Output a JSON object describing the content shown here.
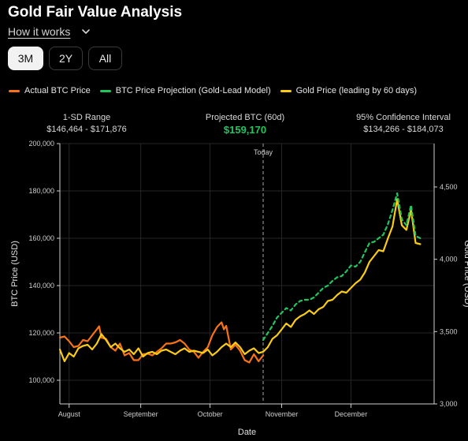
{
  "header": {
    "title": "Gold Fair Value Analysis",
    "how_it_works": "How it works"
  },
  "tabs": [
    {
      "label": "3M",
      "active": true
    },
    {
      "label": "2Y",
      "active": false
    },
    {
      "label": "All",
      "active": false
    }
  ],
  "legend": [
    {
      "label": "Actual BTC Price",
      "color": "#f97316"
    },
    {
      "label": "BTC Price Projection (Gold-Lead Model)",
      "color": "#22c55e"
    },
    {
      "label": "Gold Price (leading by 60 days)",
      "color": "#facc15"
    }
  ],
  "stats": {
    "sd_label": "1-SD Range",
    "sd_value": "$146,464 - $171,876",
    "proj_label": "Projected BTC (60d)",
    "proj_value": "$159,170",
    "ci_label": "95% Confidence Interval",
    "ci_value": "$134,266 - $184,073"
  },
  "chart_data": {
    "type": "line",
    "xlabel": "Date",
    "ylabel": "BTC Price (USD)",
    "y2label": "Gold Price (USD)",
    "ylim": [
      90000,
      200000
    ],
    "y2lim": [
      3000,
      4800
    ],
    "yticks": [
      "100,000",
      "120,000",
      "140,000",
      "160,000",
      "180,000",
      "200,000"
    ],
    "y2ticks": [
      "3,000",
      "3,500",
      "4,000",
      "4,500"
    ],
    "x_range": [
      "2025-07-28",
      "2026-01-06"
    ],
    "x_ticks": [
      {
        "date": "2025-08-01",
        "label": "August"
      },
      {
        "date": "2025-09-01",
        "label": "September"
      },
      {
        "date": "2025-10-01",
        "label": "October"
      },
      {
        "date": "2025-11-01",
        "label": "November"
      },
      {
        "date": "2025-12-01",
        "label": "December"
      }
    ],
    "today": {
      "date": "2025-10-24",
      "label": "Today"
    },
    "grid": true,
    "series": [
      {
        "name": "Actual BTC Price",
        "color": "#f97316",
        "axis": "left",
        "points": [
          [
            "2025-07-28",
            118000
          ],
          [
            "2025-07-30",
            118500
          ],
          [
            "2025-08-01",
            116500
          ],
          [
            "2025-08-03",
            114000
          ],
          [
            "2025-08-05",
            114500
          ],
          [
            "2025-08-07",
            117000
          ],
          [
            "2025-08-09",
            116500
          ],
          [
            "2025-08-11",
            119000
          ],
          [
            "2025-08-13",
            121500
          ],
          [
            "2025-08-14",
            122800
          ],
          [
            "2025-08-15",
            118000
          ],
          [
            "2025-08-17",
            117500
          ],
          [
            "2025-08-19",
            114000
          ],
          [
            "2025-08-21",
            112500
          ],
          [
            "2025-08-23",
            115500
          ],
          [
            "2025-08-25",
            110500
          ],
          [
            "2025-08-27",
            111500
          ],
          [
            "2025-08-29",
            108500
          ],
          [
            "2025-08-31",
            108500
          ],
          [
            "2025-09-02",
            111000
          ],
          [
            "2025-09-04",
            111200
          ],
          [
            "2025-09-06",
            110500
          ],
          [
            "2025-09-08",
            112000
          ],
          [
            "2025-09-10",
            113500
          ],
          [
            "2025-09-12",
            115500
          ],
          [
            "2025-09-14",
            115500
          ],
          [
            "2025-09-16",
            116000
          ],
          [
            "2025-09-18",
            117000
          ],
          [
            "2025-09-20",
            115500
          ],
          [
            "2025-09-22",
            113000
          ],
          [
            "2025-09-24",
            112000
          ],
          [
            "2025-09-26",
            109500
          ],
          [
            "2025-09-28",
            112000
          ],
          [
            "2025-09-30",
            114000
          ],
          [
            "2025-10-02",
            119000
          ],
          [
            "2025-10-04",
            122500
          ],
          [
            "2025-10-06",
            124500
          ],
          [
            "2025-10-07",
            121500
          ],
          [
            "2025-10-08",
            123000
          ],
          [
            "2025-10-10",
            113000
          ],
          [
            "2025-10-12",
            115000
          ],
          [
            "2025-10-14",
            112500
          ],
          [
            "2025-10-16",
            108500
          ],
          [
            "2025-10-18",
            107500
          ],
          [
            "2025-10-20",
            111000
          ],
          [
            "2025-10-22",
            108000
          ],
          [
            "2025-10-24",
            110500
          ]
        ]
      },
      {
        "name": "BTC Price Projection (Gold-Lead Model)",
        "color": "#22c55e",
        "axis": "left",
        "dashed": true,
        "points": [
          [
            "2025-10-24",
            117000
          ],
          [
            "2025-10-26",
            120000
          ],
          [
            "2025-10-28",
            123000
          ],
          [
            "2025-10-30",
            126500
          ],
          [
            "2025-11-01",
            128500
          ],
          [
            "2025-11-03",
            130500
          ],
          [
            "2025-11-05",
            129500
          ],
          [
            "2025-11-07",
            132000
          ],
          [
            "2025-11-09",
            133500
          ],
          [
            "2025-11-11",
            134000
          ],
          [
            "2025-11-13",
            134000
          ],
          [
            "2025-11-15",
            135000
          ],
          [
            "2025-11-17",
            137000
          ],
          [
            "2025-11-19",
            139000
          ],
          [
            "2025-11-21",
            140000
          ],
          [
            "2025-11-23",
            142000
          ],
          [
            "2025-11-25",
            143500
          ],
          [
            "2025-11-27",
            144000
          ],
          [
            "2025-11-29",
            146000
          ],
          [
            "2025-12-01",
            148500
          ],
          [
            "2025-12-03",
            148000
          ],
          [
            "2025-12-05",
            150000
          ],
          [
            "2025-12-07",
            154000
          ],
          [
            "2025-12-09",
            158000
          ],
          [
            "2025-12-11",
            158500
          ],
          [
            "2025-12-13",
            160000
          ],
          [
            "2025-12-15",
            161500
          ],
          [
            "2025-12-17",
            166000
          ],
          [
            "2025-12-19",
            172000
          ],
          [
            "2025-12-21",
            179000
          ],
          [
            "2025-12-23",
            168000
          ],
          [
            "2025-12-25",
            165500
          ],
          [
            "2025-12-27",
            174000
          ],
          [
            "2025-12-29",
            161000
          ],
          [
            "2025-12-31",
            160000
          ]
        ]
      },
      {
        "name": "Gold Price (leading by 60 days)",
        "color": "#facc15",
        "axis": "left",
        "points": [
          [
            "2025-07-28",
            113000
          ],
          [
            "2025-07-30",
            108000
          ],
          [
            "2025-08-01",
            111500
          ],
          [
            "2025-08-03",
            110000
          ],
          [
            "2025-08-05",
            113500
          ],
          [
            "2025-08-07",
            114500
          ],
          [
            "2025-08-09",
            115000
          ],
          [
            "2025-08-11",
            113000
          ],
          [
            "2025-08-13",
            115500
          ],
          [
            "2025-08-15",
            119500
          ],
          [
            "2025-08-17",
            117000
          ],
          [
            "2025-08-19",
            114000
          ],
          [
            "2025-08-21",
            115500
          ],
          [
            "2025-08-23",
            113500
          ],
          [
            "2025-08-25",
            112000
          ],
          [
            "2025-08-27",
            113000
          ],
          [
            "2025-08-29",
            111000
          ],
          [
            "2025-08-31",
            113500
          ],
          [
            "2025-09-02",
            110000
          ],
          [
            "2025-09-04",
            111500
          ],
          [
            "2025-09-06",
            112000
          ],
          [
            "2025-09-08",
            111000
          ],
          [
            "2025-09-10",
            112500
          ],
          [
            "2025-09-12",
            113000
          ],
          [
            "2025-09-14",
            112000
          ],
          [
            "2025-09-16",
            111000
          ],
          [
            "2025-09-18",
            112500
          ],
          [
            "2025-09-20",
            113500
          ],
          [
            "2025-09-22",
            112000
          ],
          [
            "2025-09-24",
            112500
          ],
          [
            "2025-09-26",
            112000
          ],
          [
            "2025-09-28",
            111500
          ],
          [
            "2025-09-30",
            113000
          ],
          [
            "2025-10-02",
            110500
          ],
          [
            "2025-10-04",
            112000
          ],
          [
            "2025-10-06",
            114000
          ],
          [
            "2025-10-08",
            115500
          ],
          [
            "2025-10-10",
            114000
          ],
          [
            "2025-10-12",
            116000
          ],
          [
            "2025-10-14",
            114000
          ],
          [
            "2025-10-16",
            111000
          ],
          [
            "2025-10-18",
            112500
          ],
          [
            "2025-10-20",
            113500
          ],
          [
            "2025-10-22",
            111500
          ],
          [
            "2025-10-24",
            112000
          ],
          [
            "2025-10-26",
            114000
          ],
          [
            "2025-10-28",
            117500
          ],
          [
            "2025-10-30",
            119000
          ],
          [
            "2025-11-01",
            121500
          ],
          [
            "2025-11-03",
            124000
          ],
          [
            "2025-11-05",
            122500
          ],
          [
            "2025-11-07",
            125500
          ],
          [
            "2025-11-09",
            127000
          ],
          [
            "2025-11-11",
            128000
          ],
          [
            "2025-11-13",
            129500
          ],
          [
            "2025-11-15",
            128000
          ],
          [
            "2025-11-17",
            130000
          ],
          [
            "2025-11-19",
            131000
          ],
          [
            "2025-11-21",
            133500
          ],
          [
            "2025-11-23",
            134000
          ],
          [
            "2025-11-25",
            136000
          ],
          [
            "2025-11-27",
            137500
          ],
          [
            "2025-11-29",
            137000
          ],
          [
            "2025-12-01",
            139000
          ],
          [
            "2025-12-03",
            141000
          ],
          [
            "2025-12-05",
            142500
          ],
          [
            "2025-12-07",
            145500
          ],
          [
            "2025-12-09",
            150000
          ],
          [
            "2025-12-11",
            152500
          ],
          [
            "2025-12-13",
            155000
          ],
          [
            "2025-12-15",
            154500
          ],
          [
            "2025-12-17",
            160000
          ],
          [
            "2025-12-19",
            165000
          ],
          [
            "2025-12-21",
            176500
          ],
          [
            "2025-12-23",
            165500
          ],
          [
            "2025-12-25",
            163500
          ],
          [
            "2025-12-27",
            172000
          ],
          [
            "2025-12-29",
            158000
          ],
          [
            "2025-12-31",
            157500
          ]
        ]
      }
    ]
  }
}
